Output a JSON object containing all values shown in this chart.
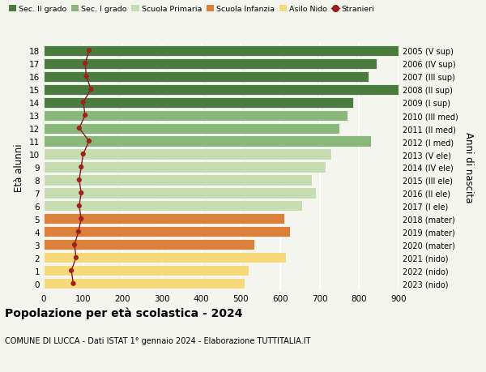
{
  "ages": [
    18,
    17,
    16,
    15,
    14,
    13,
    12,
    11,
    10,
    9,
    8,
    7,
    6,
    5,
    4,
    3,
    2,
    1,
    0
  ],
  "right_labels": [
    "2005 (V sup)",
    "2006 (IV sup)",
    "2007 (III sup)",
    "2008 (II sup)",
    "2009 (I sup)",
    "2010 (III med)",
    "2011 (II med)",
    "2012 (I med)",
    "2013 (V ele)",
    "2014 (IV ele)",
    "2015 (III ele)",
    "2016 (II ele)",
    "2017 (I ele)",
    "2018 (mater)",
    "2019 (mater)",
    "2020 (mater)",
    "2021 (nido)",
    "2022 (nido)",
    "2023 (nido)"
  ],
  "bar_values": [
    930,
    845,
    825,
    950,
    785,
    770,
    750,
    830,
    730,
    715,
    680,
    690,
    655,
    610,
    625,
    535,
    615,
    520,
    510
  ],
  "bar_colors": [
    "#4a7c3f",
    "#4a7c3f",
    "#4a7c3f",
    "#4a7c3f",
    "#4a7c3f",
    "#8ab87a",
    "#8ab87a",
    "#8ab87a",
    "#c5ddb0",
    "#c5ddb0",
    "#c5ddb0",
    "#c5ddb0",
    "#c5ddb0",
    "#d9813a",
    "#d9813a",
    "#d9813a",
    "#f5d97a",
    "#f5d97a",
    "#f5d97a"
  ],
  "stranieri_values": [
    115,
    105,
    108,
    120,
    100,
    105,
    90,
    115,
    100,
    95,
    90,
    95,
    90,
    95,
    88,
    78,
    82,
    70,
    75
  ],
  "legend_labels": [
    "Sec. II grado",
    "Sec. I grado",
    "Scuola Primaria",
    "Scuola Infanzia",
    "Asilo Nido",
    "Stranieri"
  ],
  "legend_colors": [
    "#4a7c3f",
    "#8ab87a",
    "#c5ddb0",
    "#d9813a",
    "#f5d97a",
    "#a02020"
  ],
  "ylabel_left": "Età alunni",
  "ylabel_right": "Anni di nascita",
  "title": "Popolazione per età scolastica - 2024",
  "subtitle": "COMUNE DI LUCCA - Dati ISTAT 1° gennaio 2024 - Elaborazione TUTTITALIA.IT",
  "xlim": [
    0,
    900
  ],
  "xticks": [
    0,
    100,
    200,
    300,
    400,
    500,
    600,
    700,
    800,
    900
  ],
  "background_color": "#f5f5ef",
  "grid_color": "#ffffff",
  "stranieri_color": "#a02020",
  "stranieri_line_color": "#8b1a1a",
  "bar_height": 0.82
}
